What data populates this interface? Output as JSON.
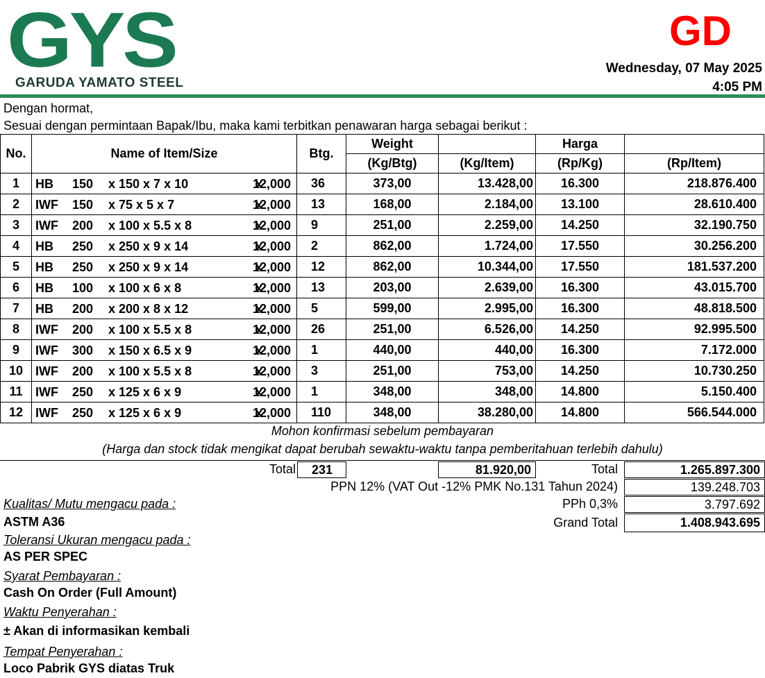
{
  "header": {
    "logo_text": "GYS",
    "logo_subtitle": "GARUDA YAMATO STEEL",
    "code": "GD",
    "date": "Wednesday, 07 May 2025",
    "time": "4:05 PM"
  },
  "intro": {
    "greeting": "Dengan hormat,",
    "line": "Sesuai dengan permintaan Bapak/Ibu, maka kami terbitkan penawaran harga sebagai berikut :"
  },
  "table": {
    "headers": {
      "no": "No.",
      "name": "Name of Item/Size",
      "btg": "Btg.",
      "weight": "Weight",
      "kg_btg": "(Kg/Btg)",
      "kg_item": "(Kg/Item)",
      "harga": "Harga",
      "rp_kg": "(Rp/Kg)",
      "rp_item": "(Rp/Item)"
    },
    "rows": [
      {
        "no": "1",
        "type": "HB",
        "a": "150",
        "dims": "x 150 x 7 x 10",
        "x": "x",
        "len": "12,000",
        "btg": "36",
        "kg_btg": "373,00",
        "kg_item": "13.428,00",
        "rp_kg": "16.300",
        "rp_item": "218.876.400"
      },
      {
        "no": "2",
        "type": "IWF",
        "a": "150",
        "dims": "x 75 x 5 x 7",
        "x": "x",
        "len": "12,000",
        "btg": "13",
        "kg_btg": "168,00",
        "kg_item": "2.184,00",
        "rp_kg": "13.100",
        "rp_item": "28.610.400"
      },
      {
        "no": "3",
        "type": "IWF",
        "a": "200",
        "dims": "x 100 x 5.5 x 8",
        "x": "x",
        "len": "12,000",
        "btg": "9",
        "kg_btg": "251,00",
        "kg_item": "2.259,00",
        "rp_kg": "14.250",
        "rp_item": "32.190.750"
      },
      {
        "no": "4",
        "type": "HB",
        "a": "250",
        "dims": "x 250 x 9 x 14",
        "x": "x",
        "len": "12,000",
        "btg": "2",
        "kg_btg": "862,00",
        "kg_item": "1.724,00",
        "rp_kg": "17.550",
        "rp_item": "30.256.200"
      },
      {
        "no": "5",
        "type": "HB",
        "a": "250",
        "dims": "x 250 x 9 x 14",
        "x": "x",
        "len": "12,000",
        "btg": "12",
        "kg_btg": "862,00",
        "kg_item": "10.344,00",
        "rp_kg": "17.550",
        "rp_item": "181.537.200"
      },
      {
        "no": "6",
        "type": "HB",
        "a": "100",
        "dims": "x 100 x 6 x 8",
        "x": "x",
        "len": "12,000",
        "btg": "13",
        "kg_btg": "203,00",
        "kg_item": "2.639,00",
        "rp_kg": "16.300",
        "rp_item": "43.015.700"
      },
      {
        "no": "7",
        "type": "HB",
        "a": "200",
        "dims": "x 200 x 8 x 12",
        "x": "x",
        "len": "12,000",
        "btg": "5",
        "kg_btg": "599,00",
        "kg_item": "2.995,00",
        "rp_kg": "16.300",
        "rp_item": "48.818.500"
      },
      {
        "no": "8",
        "type": "IWF",
        "a": "200",
        "dims": "x 100 x 5.5 x 8",
        "x": "x",
        "len": "12,000",
        "btg": "26",
        "kg_btg": "251,00",
        "kg_item": "6.526,00",
        "rp_kg": "14.250",
        "rp_item": "92.995.500"
      },
      {
        "no": "9",
        "type": "IWF",
        "a": "300",
        "dims": "x 150 x 6.5 x 9",
        "x": "x",
        "len": "12,000",
        "btg": "1",
        "kg_btg": "440,00",
        "kg_item": "440,00",
        "rp_kg": "16.300",
        "rp_item": "7.172.000"
      },
      {
        "no": "10",
        "type": "IWF",
        "a": "200",
        "dims": "x 100 x 5.5 x 8",
        "x": "x",
        "len": "12,000",
        "btg": "3",
        "kg_btg": "251,00",
        "kg_item": "753,00",
        "rp_kg": "14.250",
        "rp_item": "10.730.250"
      },
      {
        "no": "11",
        "type": "IWF",
        "a": "250",
        "dims": "x 125 x 6 x 9",
        "x": "x",
        "len": "12,000",
        "btg": "1",
        "kg_btg": "348,00",
        "kg_item": "348,00",
        "rp_kg": "14.800",
        "rp_item": "5.150.400"
      },
      {
        "no": "12",
        "type": "IWF",
        "a": "250",
        "dims": "x 125 x 6 x 9",
        "x": "x",
        "len": "12,000",
        "btg": "110",
        "kg_btg": "348,00",
        "kg_item": "38.280,00",
        "rp_kg": "14.800",
        "rp_item": "566.544.000"
      }
    ]
  },
  "notes": {
    "line1": "Mohon konfirmasi sebelum pembayaran",
    "line2": "(Harga dan stock tidak mengikat dapat berubah sewaktu-waktu tanpa pemberitahuan terlebih dahulu)"
  },
  "totals": {
    "total_label": "Total",
    "total_btg": "231",
    "total_kg": "81.920,00",
    "total_label2": "Total",
    "total_rp": "1.265.897.300",
    "ppn_label": "PPN 12% (VAT Out -12% PMK No.131 Tahun 2024)",
    "ppn_value": "139.248.703",
    "pph_label": "PPh 0,3%",
    "pph_value": "3.797.692",
    "grand_label": "Grand Total",
    "grand_value": "1.408.943.695"
  },
  "terms": {
    "quality_label": "Kualitas/ Mutu mengacu pada :",
    "quality_value": "ASTM A36",
    "tolerance_label": "Toleransi Ukuran mengacu pada :",
    "tolerance_value": "AS PER SPEC",
    "payment_label": "Syarat Pembayaran :",
    "payment_value": "Cash On Order (Full Amount)",
    "delivery_time_label": "Waktu Penyerahan :",
    "delivery_time_value": "± Akan di informasikan kembali",
    "delivery_place_label": "Tempat Penyerahan :",
    "delivery_place_value": "Loco Pabrik GYS diatas Truk"
  }
}
